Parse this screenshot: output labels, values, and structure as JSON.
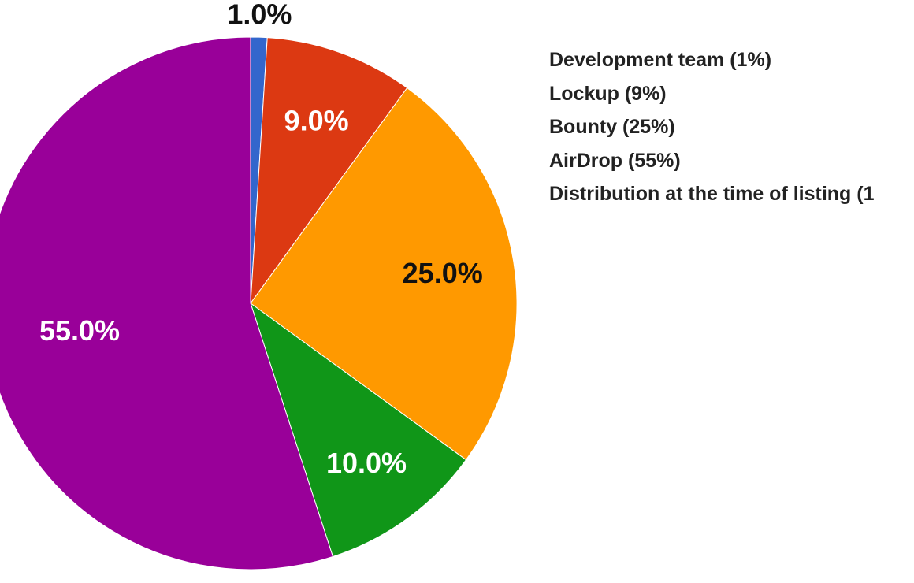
{
  "chart_data": {
    "type": "pie",
    "title": "",
    "slices": [
      {
        "name": "Development team (1%)",
        "value": 1.0,
        "label": "1.0%",
        "color": "#3366cc",
        "label_color": "#111111"
      },
      {
        "name": "Lockup (9%)",
        "value": 9.0,
        "label": "9.0%",
        "color": "#dc3912",
        "label_color": "#ffffff"
      },
      {
        "name": "Bounty (25%)",
        "value": 25.0,
        "label": "25.0%",
        "color": "#ff9900",
        "label_color": "#111111"
      },
      {
        "name": "Distribution at the time of listing (1",
        "value": 10.0,
        "label": "10.0%",
        "color": "#109618",
        "label_color": "#ffffff"
      },
      {
        "name": "AirDrop (55%)",
        "value": 55.0,
        "label": "55.0%",
        "color": "#990099",
        "label_color": "#ffffff"
      }
    ],
    "legend": {
      "position": "right",
      "entries": [
        "Development team (1%)",
        "Lockup (9%)",
        "Bounty (25%)",
        "AirDrop (55%)",
        "Distribution at the time of listing (1"
      ]
    }
  }
}
